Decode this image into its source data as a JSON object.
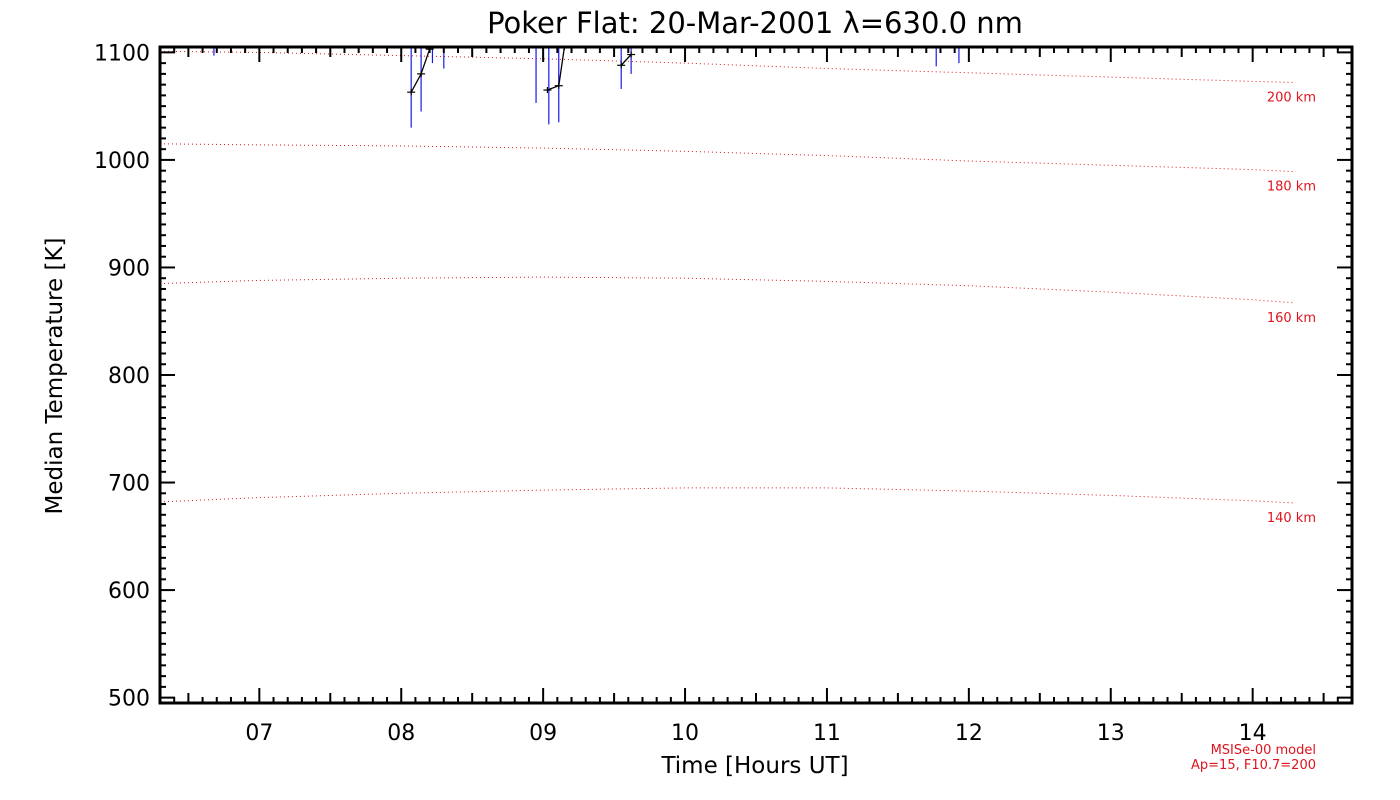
{
  "chart_data": {
    "type": "line",
    "title": "Poker Flat: 20-Mar-2001 λ=630.0 nm",
    "xlabel": "Time [Hours UT]",
    "ylabel": "Median Temperature [K]",
    "xlim": [
      6.3,
      14.7
    ],
    "ylim": [
      495,
      1105
    ],
    "x_ticks": [
      7,
      8,
      9,
      10,
      11,
      12,
      13,
      14
    ],
    "x_tick_labels": [
      "07",
      "08",
      "09",
      "10",
      "11",
      "12",
      "13",
      "14"
    ],
    "y_ticks": [
      500,
      600,
      700,
      800,
      900,
      1000,
      1100
    ],
    "y_tick_labels": [
      "500",
      "600",
      "700",
      "800",
      "900",
      "1000",
      "1100"
    ],
    "model_series": [
      {
        "name": "200 km",
        "label": "200 km",
        "x": [
          6.3,
          7.0,
          8.0,
          9.0,
          10.0,
          11.0,
          12.0,
          13.0,
          14.0,
          14.3
        ],
        "values": [
          1101,
          1100,
          1097,
          1094,
          1090,
          1085,
          1081,
          1077,
          1073,
          1072
        ]
      },
      {
        "name": "180 km",
        "label": "180 km",
        "x": [
          6.3,
          7.0,
          8.0,
          9.0,
          10.0,
          11.0,
          12.0,
          13.0,
          14.0,
          14.3
        ],
        "values": [
          1015,
          1014,
          1013,
          1011,
          1008,
          1004,
          999,
          995,
          991,
          989
        ]
      },
      {
        "name": "160 km",
        "label": "160 km",
        "x": [
          6.3,
          7.0,
          8.0,
          9.0,
          10.0,
          11.0,
          12.0,
          13.0,
          14.0,
          14.3
        ],
        "values": [
          885,
          888,
          890,
          891,
          890,
          887,
          883,
          877,
          870,
          867
        ]
      },
      {
        "name": "140 km",
        "label": "140 km",
        "x": [
          6.3,
          7.0,
          8.0,
          9.0,
          10.0,
          11.0,
          12.0,
          13.0,
          14.0,
          14.3
        ],
        "values": [
          682,
          686,
          690,
          693,
          695,
          695,
          692,
          688,
          683,
          681
        ]
      }
    ],
    "measured_series": [
      {
        "name": "segment-1",
        "x": [
          8.07,
          8.14,
          8.2
        ],
        "values": [
          1063,
          1080,
          1103
        ]
      },
      {
        "name": "segment-2",
        "x": [
          9.03,
          9.11,
          9.15
        ],
        "values": [
          1065,
          1069,
          1105
        ]
      },
      {
        "name": "segment-3",
        "x": [
          9.55,
          9.62
        ],
        "values": [
          1088,
          1098
        ]
      }
    ],
    "error_bars": [
      {
        "x": 8.07,
        "low": 1030,
        "high": 1105
      },
      {
        "x": 8.14,
        "low": 1045,
        "high": 1105
      },
      {
        "x": 8.22,
        "low": 1090,
        "high": 1105
      },
      {
        "x": 8.3,
        "low": 1085,
        "high": 1105
      },
      {
        "x": 8.95,
        "low": 1053,
        "high": 1105
      },
      {
        "x": 9.04,
        "low": 1033,
        "high": 1105
      },
      {
        "x": 9.11,
        "low": 1035,
        "high": 1105
      },
      {
        "x": 9.55,
        "low": 1066,
        "high": 1105
      },
      {
        "x": 9.62,
        "low": 1080,
        "high": 1105
      },
      {
        "x": 6.68,
        "low": 1097,
        "high": 1105
      },
      {
        "x": 11.77,
        "low": 1087,
        "high": 1105
      },
      {
        "x": 11.93,
        "low": 1090,
        "high": 1105
      },
      {
        "x": 12.0,
        "low": 1093,
        "high": 1105
      }
    ],
    "annotation_lines": [
      "MSISe-00 model",
      "Ap=15, F10.7=200"
    ],
    "colors": {
      "axis": "#000000",
      "model": "#e0141e",
      "measured": "#000000",
      "error": "#1a1ae6"
    }
  }
}
